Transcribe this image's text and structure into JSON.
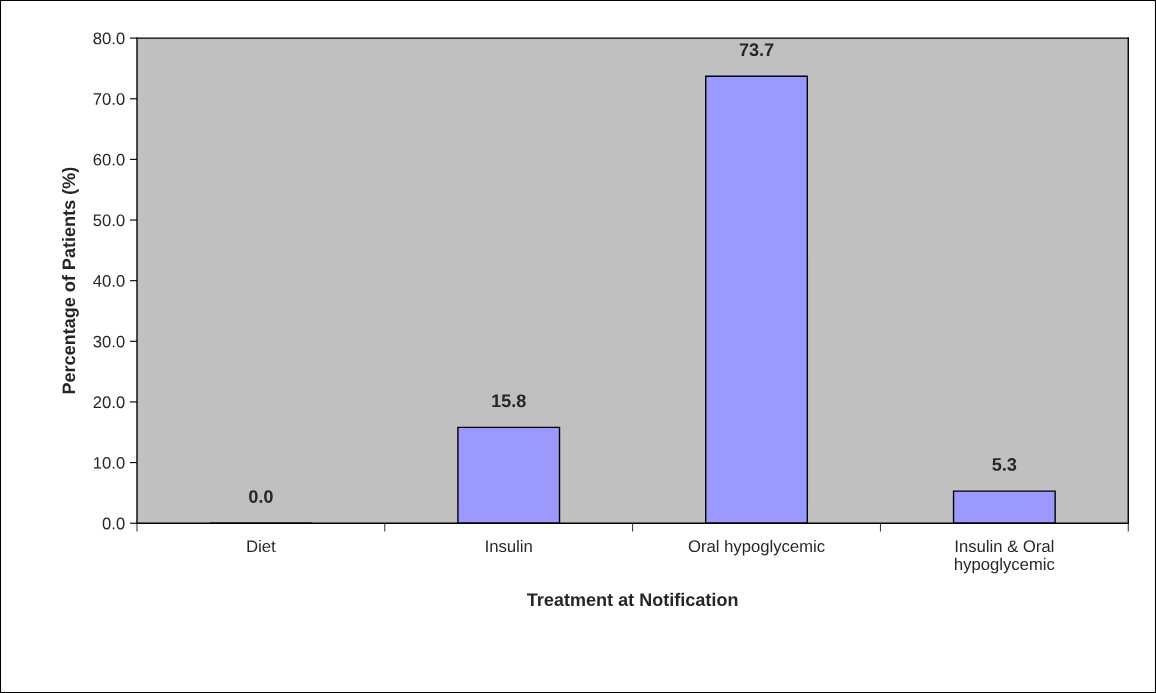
{
  "chart_data": {
    "type": "bar",
    "xlabel": "Treatment at Notification",
    "ylabel": "Percentage of Patients (%)",
    "categories": [
      "Diet",
      "Insulin",
      "Oral hypoglycemic",
      "Insulin & Oral\nhypoglycemic"
    ],
    "values": [
      0.0,
      15.8,
      73.7,
      5.3
    ],
    "value_labels": [
      "0.0",
      "15.8",
      "73.7",
      "5.3"
    ],
    "color": "#9999ff",
    "ylim": [
      0,
      80
    ],
    "yticks": [
      {
        "value": 0,
        "label": "0.0"
      },
      {
        "value": 10,
        "label": "10.0"
      },
      {
        "value": 20,
        "label": "20.0"
      },
      {
        "value": 30,
        "label": "30.0"
      },
      {
        "value": 40,
        "label": "40.0"
      },
      {
        "value": 50,
        "label": "50.0"
      },
      {
        "value": 60,
        "label": "60.0"
      },
      {
        "value": 70,
        "label": "70.0"
      },
      {
        "value": 80,
        "label": "80.0"
      }
    ],
    "grid": false,
    "legend": false
  }
}
